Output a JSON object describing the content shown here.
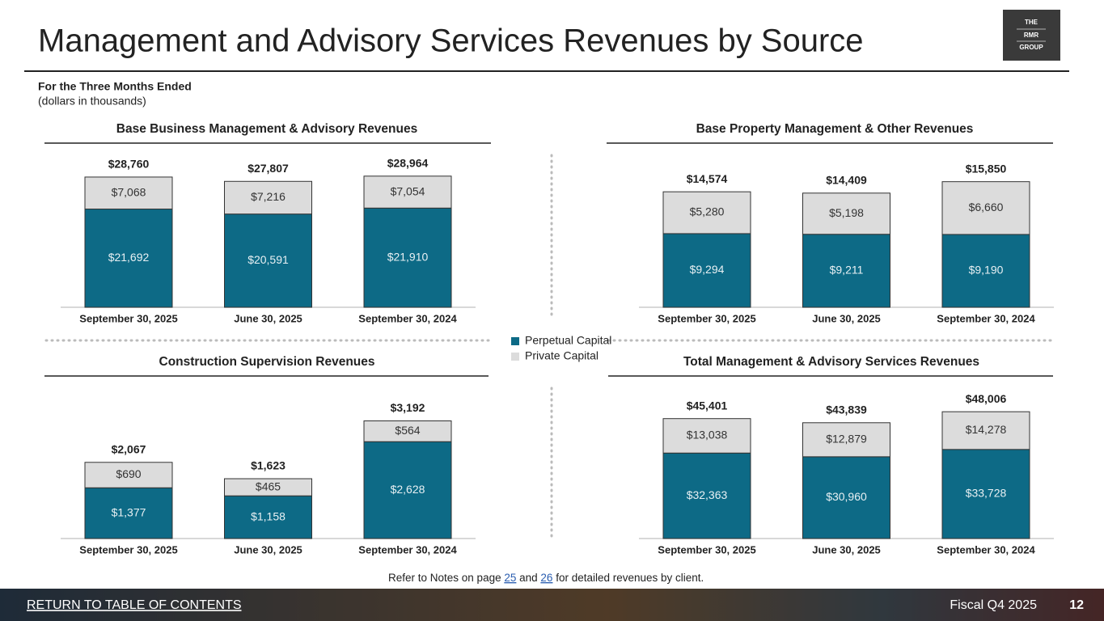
{
  "header": {
    "title": "Management and Advisory Services Revenues by Source",
    "subtitle": "For the Three Months Ended",
    "units": "(dollars in thousands)",
    "logo": [
      "THE",
      "RMR",
      "GROUP"
    ]
  },
  "note": [
    "Refer to Notes on page ",
    "25",
    " and ",
    "26",
    " for detailed revenues by client."
  ],
  "footer": {
    "link": "RETURN TO TABLE OF CONTENTS",
    "period": "Fiscal Q4 2025",
    "page": "12"
  },
  "chart_data": [
    {
      "type": "bar",
      "stacked": true,
      "title": "Base Business Management & Advisory Revenues",
      "categories": [
        "September 30, 2025",
        "June 30, 2025",
        "September 30, 2024"
      ],
      "ylim": [
        0,
        35000
      ],
      "series": [
        {
          "name": "Perpetual Capital",
          "color": "#0d6a86",
          "values": [
            21692,
            20591,
            21910
          ],
          "value_labels": [
            "$21,692",
            "$20,591",
            "$21,910"
          ]
        },
        {
          "name": "Private Capital",
          "color": "#dcdcdc",
          "values": [
            7068,
            7216,
            7054
          ],
          "value_labels": [
            "$7,068",
            "$7,216",
            "$7,054"
          ]
        }
      ],
      "totals": [
        28760,
        27807,
        28964
      ],
      "total_labels": [
        "$28,760",
        "$27,807",
        "$28,964"
      ]
    },
    {
      "type": "bar",
      "stacked": true,
      "title": "Base Property Management & Other Revenues",
      "categories": [
        "September 30, 2025",
        "June 30, 2025",
        "September 30, 2024"
      ],
      "ylim": [
        0,
        20000
      ],
      "series": [
        {
          "name": "Perpetual Capital",
          "color": "#0d6a86",
          "values": [
            9294,
            9211,
            9190
          ],
          "value_labels": [
            "$9,294",
            "$9,211",
            "$9,190"
          ]
        },
        {
          "name": "Private Capital",
          "color": "#dcdcdc",
          "values": [
            5280,
            5198,
            6660
          ],
          "value_labels": [
            "$5,280",
            "$5,198",
            "$6,660"
          ]
        }
      ],
      "totals": [
        14574,
        14409,
        15850
      ],
      "total_labels": [
        "$14,574",
        "$14,409",
        "$15,850"
      ]
    },
    {
      "type": "bar",
      "stacked": true,
      "title": "Construction Supervision Revenues",
      "categories": [
        "September 30, 2025",
        "June 30, 2025",
        "September 30, 2024"
      ],
      "ylim": [
        0,
        4300
      ],
      "series": [
        {
          "name": "Perpetual Capital",
          "color": "#0d6a86",
          "values": [
            1377,
            1158,
            2628
          ],
          "value_labels": [
            "$1,377",
            "$1,158",
            "$2,628"
          ]
        },
        {
          "name": "Private Capital",
          "color": "#dcdcdc",
          "values": [
            690,
            465,
            564
          ],
          "value_labels": [
            "$690",
            "$465",
            "$564"
          ]
        }
      ],
      "totals": [
        2067,
        1623,
        3192
      ],
      "total_labels": [
        "$2,067",
        "$1,623",
        "$3,192"
      ]
    },
    {
      "type": "bar",
      "stacked": true,
      "title": "Total Management & Advisory Services Revenues",
      "categories": [
        "September 30, 2025",
        "June 30, 2025",
        "September 30, 2024"
      ],
      "ylim": [
        0,
        60000
      ],
      "series": [
        {
          "name": "Perpetual Capital",
          "color": "#0d6a86",
          "values": [
            32363,
            30960,
            33728
          ],
          "value_labels": [
            "$32,363",
            "$30,960",
            "$33,728"
          ]
        },
        {
          "name": "Private Capital",
          "color": "#dcdcdc",
          "values": [
            13038,
            12879,
            14278
          ],
          "value_labels": [
            "$13,038",
            "$12,879",
            "$14,278"
          ]
        }
      ],
      "totals": [
        45401,
        43839,
        48006
      ],
      "total_labels": [
        "$45,401",
        "$43,839",
        "$48,006"
      ]
    }
  ]
}
